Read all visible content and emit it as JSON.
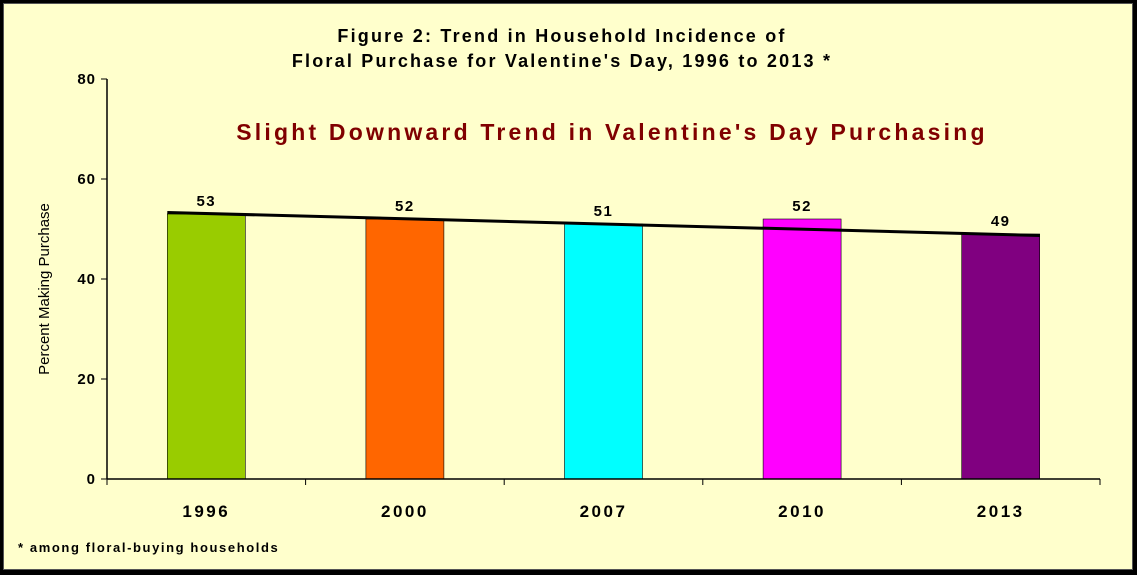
{
  "chart_data": {
    "type": "bar",
    "title_lines": [
      "Figure 2:  Trend in Household Incidence of",
      "Floral Purchase for Valentine's Day, 1996 to 2013 *"
    ],
    "annotation": "Slight Downward Trend in Valentine's Day Purchasing",
    "ylabel": "Percent Making Purchase",
    "xlabel": "",
    "categories": [
      "1996",
      "2000",
      "2007",
      "2010",
      "2013"
    ],
    "values": [
      53,
      52,
      51,
      52,
      49
    ],
    "data_labels": [
      "53",
      "52",
      "51",
      "52",
      "49"
    ],
    "bar_colors": [
      "#99CC00",
      "#FF6600",
      "#00FFFF",
      "#FF00FF",
      "#800080"
    ],
    "ylim": [
      0,
      80
    ],
    "yticks": [
      0,
      20,
      40,
      60,
      80
    ],
    "trendline": {
      "start": 53.3,
      "end": 48.7,
      "color": "#000000"
    },
    "grid": false,
    "legend": "none",
    "footnote": "* among floral-buying households",
    "colors": {
      "page_background": "#FFFFCC",
      "plot_background": "#FFFFCC",
      "annotation": "#800000",
      "frame": "#000000"
    }
  }
}
